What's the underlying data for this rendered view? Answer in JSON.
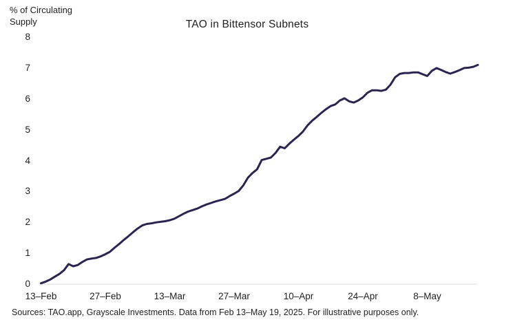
{
  "header": {
    "title": "TAO in Bittensor Subnets",
    "y_axis_title": "% of Circulating\nSupply"
  },
  "footer": {
    "source_note": "Sources: TAO.app, Grayscale Investments. Data from Feb 13–May 19, 2025. For illustrative purposes only."
  },
  "chart_data": {
    "type": "line",
    "title": "TAO in Bittensor Subnets",
    "ylabel": "% of Circulating Supply",
    "xlabel": "",
    "ylim": [
      0,
      8
    ],
    "y_ticks": [
      0,
      1,
      2,
      3,
      4,
      5,
      6,
      7,
      8
    ],
    "x_tick_days": [
      0,
      14,
      28,
      42,
      56,
      70,
      84
    ],
    "x_tick_labels": [
      "13–Feb",
      "27–Feb",
      "13–Mar",
      "27–Mar",
      "10–Apr",
      "24–Apr",
      "8–May"
    ],
    "x_start_date": "2025-02-13",
    "x_end_date": "2025-05-19",
    "x_interval": "daily",
    "grid": false,
    "legend": false,
    "line_color": "#2b2350",
    "axis_color": "#d9d9d9",
    "series": [
      {
        "name": "TAO in Bittensor Subnets (% of circulating supply)",
        "values": [
          0.03,
          0.08,
          0.15,
          0.24,
          0.33,
          0.45,
          0.65,
          0.58,
          0.62,
          0.72,
          0.8,
          0.83,
          0.85,
          0.9,
          0.97,
          1.05,
          1.18,
          1.3,
          1.43,
          1.55,
          1.68,
          1.8,
          1.9,
          1.95,
          1.97,
          2.0,
          2.02,
          2.04,
          2.07,
          2.12,
          2.2,
          2.28,
          2.35,
          2.4,
          2.45,
          2.52,
          2.58,
          2.63,
          2.68,
          2.72,
          2.76,
          2.85,
          2.93,
          3.02,
          3.2,
          3.45,
          3.6,
          3.72,
          4.02,
          4.06,
          4.1,
          4.25,
          4.45,
          4.4,
          4.55,
          4.68,
          4.8,
          4.95,
          5.15,
          5.3,
          5.42,
          5.55,
          5.67,
          5.77,
          5.82,
          5.95,
          6.02,
          5.92,
          5.88,
          5.95,
          6.05,
          6.2,
          6.28,
          6.28,
          6.26,
          6.3,
          6.46,
          6.7,
          6.81,
          6.84,
          6.84,
          6.86,
          6.86,
          6.8,
          6.74,
          6.91,
          7.0,
          6.94,
          6.87,
          6.82,
          6.87,
          6.93,
          7.0,
          7.01,
          7.04,
          7.1
        ]
      }
    ]
  }
}
